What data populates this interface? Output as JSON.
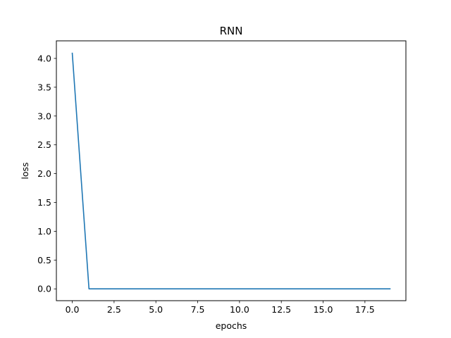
{
  "chart_data": {
    "type": "line",
    "title": "RNN",
    "xlabel": "epochs",
    "ylabel": "loss",
    "xlim": [
      -0.95,
      19.95
    ],
    "ylim": [
      -0.205,
      4.305
    ],
    "x_ticks": [
      0.0,
      2.5,
      5.0,
      7.5,
      10.0,
      12.5,
      15.0,
      17.5
    ],
    "x_tick_labels": [
      "0.0",
      "2.5",
      "5.0",
      "7.5",
      "10.0",
      "12.5",
      "15.0",
      "17.5"
    ],
    "y_ticks": [
      0.0,
      0.5,
      1.0,
      1.5,
      2.0,
      2.5,
      3.0,
      3.5,
      4.0
    ],
    "y_tick_labels": [
      "0.0",
      "0.5",
      "1.0",
      "1.5",
      "2.0",
      "2.5",
      "3.0",
      "3.5",
      "4.0"
    ],
    "grid": false,
    "x": [
      0,
      1,
      2,
      3,
      4,
      5,
      6,
      7,
      8,
      9,
      10,
      11,
      12,
      13,
      14,
      15,
      16,
      17,
      18,
      19
    ],
    "series": [
      {
        "values": [
          4.09,
          0.0,
          0.0,
          0.0,
          0.0,
          0.0,
          0.0,
          0.0,
          0.0,
          0.0,
          0.0,
          0.0,
          0.0,
          0.0,
          0.0,
          0.0,
          0.0,
          0.0,
          0.0,
          0.0
        ],
        "color": "#1f77b4"
      }
    ]
  }
}
